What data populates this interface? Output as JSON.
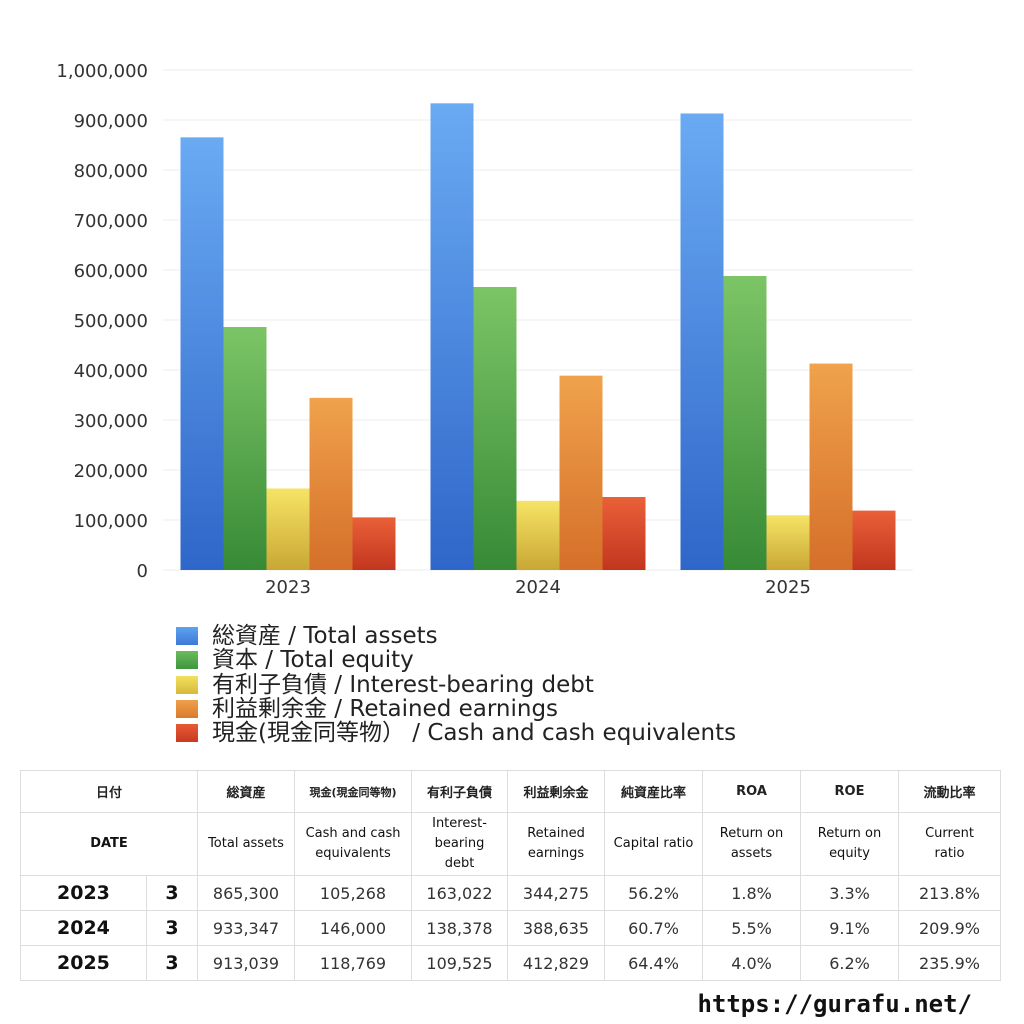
{
  "chart_data": {
    "type": "bar",
    "categories": [
      "2023",
      "2024",
      "2025"
    ],
    "series": [
      {
        "name": "総資産 / Total assets",
        "values": [
          865300,
          933347,
          913039
        ],
        "color": "#4a8be8"
      },
      {
        "name": "資本 / Total equity",
        "values": [
          486000,
          566000,
          588000
        ],
        "color": "#55ac4c"
      },
      {
        "name": "有利子負債 / Interest-bearing debt",
        "values": [
          163022,
          138378,
          109525
        ],
        "color": "#e8d24a"
      },
      {
        "name": "利益剰余金 / Retained earnings",
        "values": [
          344275,
          388635,
          412829
        ],
        "color": "#e58a33"
      },
      {
        "name": "現金(現金同等物） /  Cash and cash equivalents",
        "values": [
          105268,
          146000,
          118769
        ],
        "color": "#d9462a"
      }
    ],
    "yticks": [
      "0",
      "100,000",
      "200,000",
      "300,000",
      "400,000",
      "500,000",
      "600,000",
      "700,000",
      "800,000",
      "900,000",
      "1,000,000"
    ],
    "ylim": [
      0,
      1000000
    ],
    "grid": true,
    "legend_position": "bottom"
  },
  "table": {
    "header_jp": [
      "日付",
      "総資産",
      "現金(現金同等物)",
      "有利子負債",
      "利益剰余金",
      "純資産比率",
      "ROA",
      "ROE",
      "流動比率"
    ],
    "header_en": {
      "date": "DATE",
      "total_assets": "Total assets",
      "cash_1": "Cash and cash",
      "cash_2": "equivalents",
      "debt_1": "Interest-",
      "debt_2": "bearing",
      "debt_3": "debt",
      "retained_1": "Retained",
      "retained_2": "earnings",
      "capital_ratio": "Capital ratio",
      "roa_1": "Return on",
      "roa_2": "assets",
      "roe_1": "Return on",
      "roe_2": "equity",
      "current_1": "Current",
      "current_2": "ratio"
    },
    "rows": [
      {
        "year": "2023",
        "month": "3",
        "total_assets": "865,300",
        "cash": "105,268",
        "debt": "163,022",
        "retained": "344,275",
        "capital_ratio": "56.2%",
        "roa": "1.8%",
        "roe": "3.3%",
        "current_ratio": "213.8%"
      },
      {
        "year": "2024",
        "month": "3",
        "total_assets": "933,347",
        "cash": "146,000",
        "debt": "138,378",
        "retained": "388,635",
        "capital_ratio": "60.7%",
        "roa": "5.5%",
        "roe": "9.1%",
        "current_ratio": "209.9%"
      },
      {
        "year": "2025",
        "month": "3",
        "total_assets": "913,039",
        "cash": "118,769",
        "debt": "109,525",
        "retained": "412,829",
        "capital_ratio": "64.4%",
        "roa": "4.0%",
        "roe": "6.2%",
        "current_ratio": "235.9%"
      }
    ]
  },
  "footer_url": "https://gurafu.net/"
}
